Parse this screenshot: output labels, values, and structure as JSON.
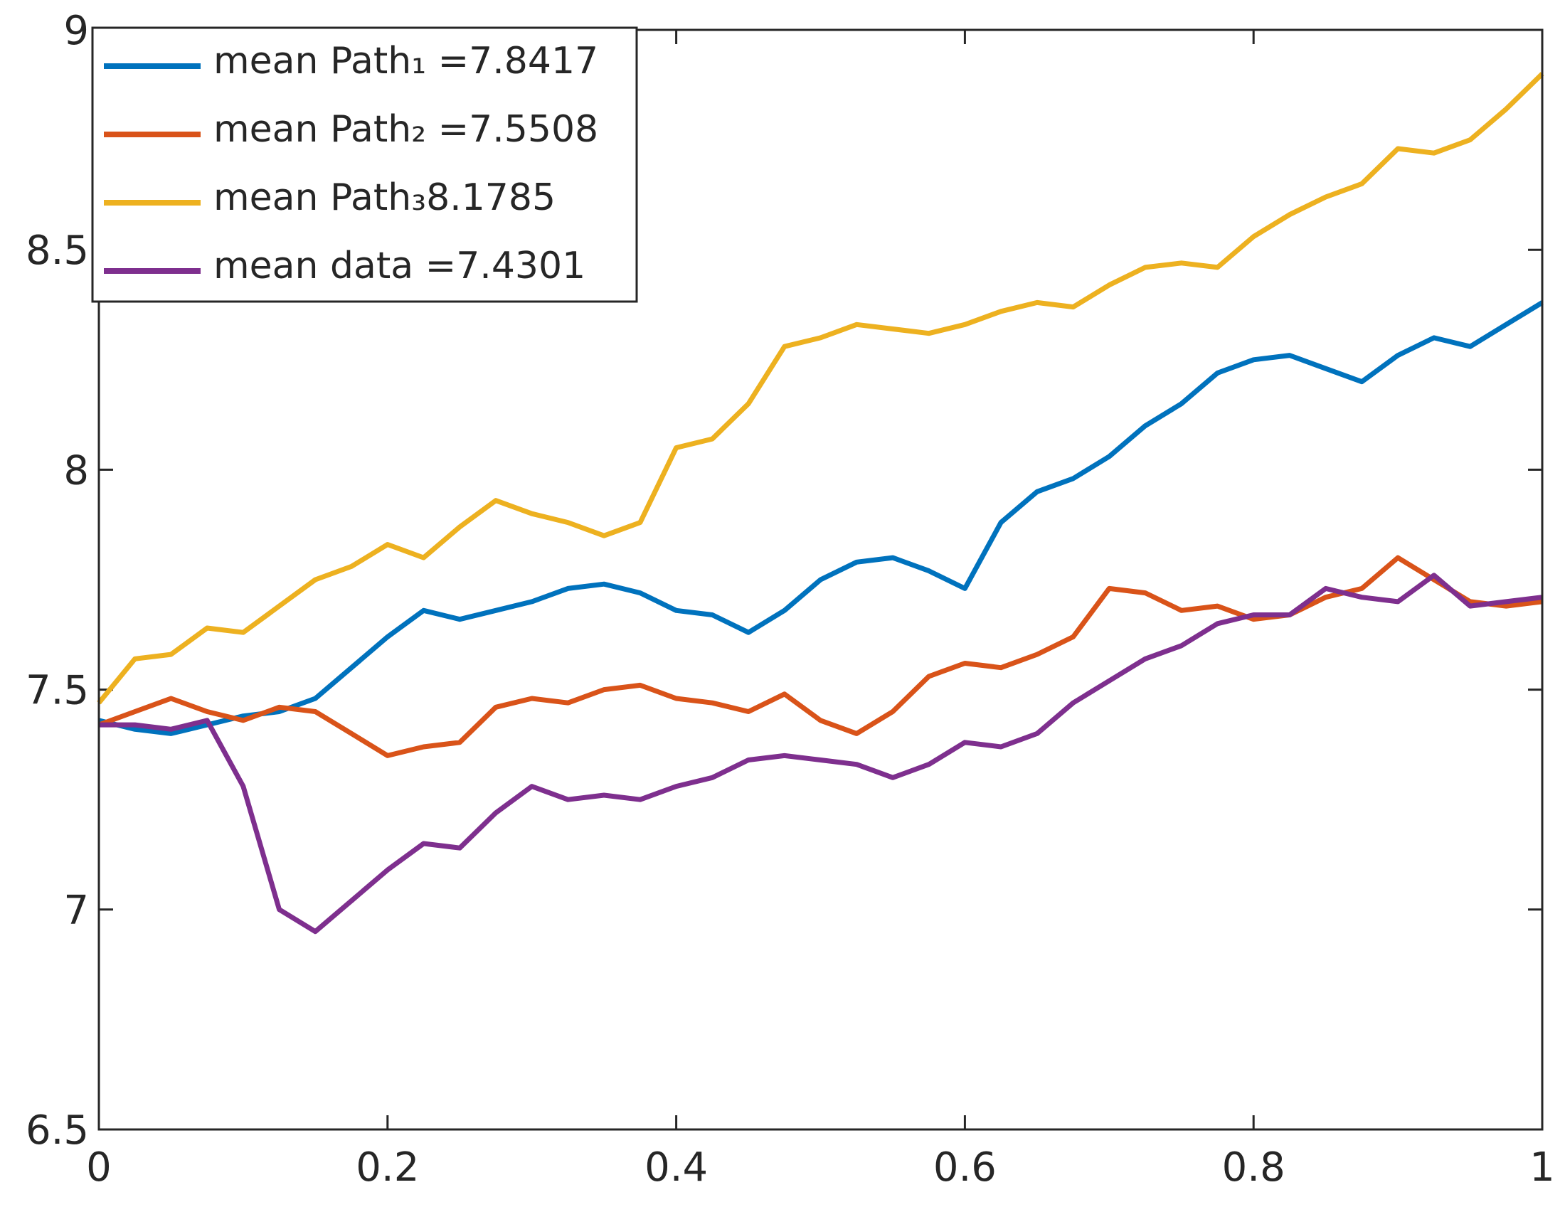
{
  "chart_data": {
    "type": "line",
    "x": [
      0,
      0.025,
      0.05,
      0.075,
      0.1,
      0.125,
      0.15,
      0.175,
      0.2,
      0.225,
      0.25,
      0.275,
      0.3,
      0.325,
      0.35,
      0.375,
      0.4,
      0.425,
      0.45,
      0.475,
      0.5,
      0.525,
      0.55,
      0.575,
      0.6,
      0.625,
      0.65,
      0.675,
      0.7,
      0.725,
      0.75,
      0.775,
      0.8,
      0.825,
      0.85,
      0.875,
      0.9,
      0.925,
      0.95,
      0.975,
      1
    ],
    "series": [
      {
        "name": "mean Path₁ =7.8417",
        "color": "#0072BD",
        "values": [
          7.43,
          7.41,
          7.4,
          7.42,
          7.44,
          7.45,
          7.48,
          7.55,
          7.62,
          7.68,
          7.66,
          7.68,
          7.7,
          7.73,
          7.74,
          7.72,
          7.68,
          7.67,
          7.63,
          7.68,
          7.75,
          7.79,
          7.8,
          7.77,
          7.73,
          7.88,
          7.95,
          7.98,
          8.03,
          8.1,
          8.15,
          8.22,
          8.25,
          8.26,
          8.23,
          8.2,
          8.26,
          8.3,
          8.28,
          8.33,
          8.38
        ]
      },
      {
        "name": "mean Path₂ =7.5508",
        "color": "#D95319",
        "values": [
          7.42,
          7.45,
          7.48,
          7.45,
          7.43,
          7.46,
          7.45,
          7.4,
          7.35,
          7.37,
          7.38,
          7.46,
          7.48,
          7.47,
          7.5,
          7.51,
          7.48,
          7.47,
          7.45,
          7.49,
          7.43,
          7.4,
          7.45,
          7.53,
          7.56,
          7.55,
          7.58,
          7.62,
          7.73,
          7.72,
          7.68,
          7.69,
          7.66,
          7.67,
          7.71,
          7.73,
          7.8,
          7.75,
          7.7,
          7.69,
          7.7
        ]
      },
      {
        "name": "mean Path₃8.1785",
        "color": "#EDB120",
        "values": [
          7.47,
          7.57,
          7.58,
          7.64,
          7.63,
          7.69,
          7.75,
          7.78,
          7.83,
          7.8,
          7.87,
          7.93,
          7.9,
          7.88,
          7.85,
          7.88,
          8.05,
          8.07,
          8.15,
          8.28,
          8.3,
          8.33,
          8.32,
          8.31,
          8.33,
          8.36,
          8.38,
          8.37,
          8.42,
          8.46,
          8.47,
          8.46,
          8.53,
          8.58,
          8.62,
          8.65,
          8.73,
          8.72,
          8.75,
          8.82,
          8.9
        ]
      },
      {
        "name": "mean data =7.4301",
        "color": "#7E2F8E",
        "values": [
          7.42,
          7.42,
          7.41,
          7.43,
          7.28,
          7.0,
          6.95,
          7.02,
          7.09,
          7.15,
          7.14,
          7.22,
          7.28,
          7.25,
          7.26,
          7.25,
          7.28,
          7.3,
          7.34,
          7.35,
          7.34,
          7.33,
          7.3,
          7.33,
          7.38,
          7.37,
          7.4,
          7.47,
          7.52,
          7.57,
          7.6,
          7.65,
          7.67,
          7.67,
          7.73,
          7.71,
          7.7,
          7.76,
          7.69,
          7.7,
          7.71
        ]
      }
    ],
    "xlim": [
      0,
      1
    ],
    "ylim": [
      6.5,
      9
    ],
    "xticks": [
      0,
      0.2,
      0.4,
      0.6,
      0.8,
      1
    ],
    "yticks": [
      6.5,
      7,
      7.5,
      8,
      8.5,
      9
    ],
    "grid": false,
    "legend": "upper left"
  }
}
